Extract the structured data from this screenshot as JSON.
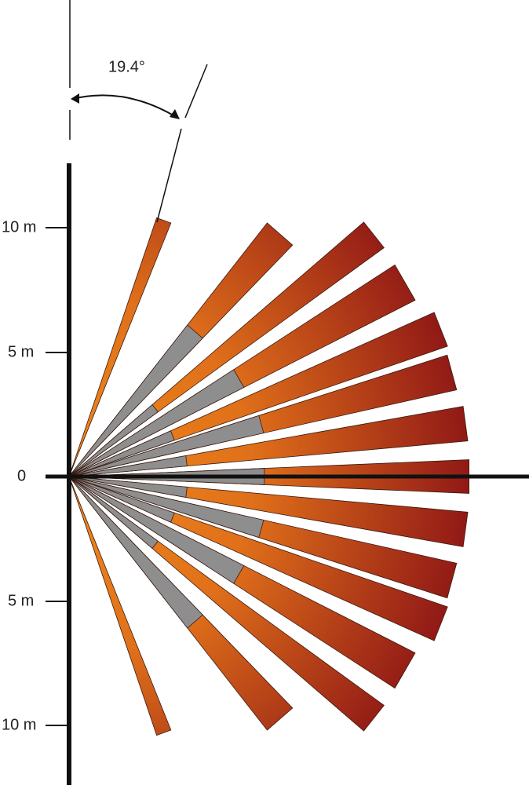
{
  "angle_label": "19.4°",
  "scale_labels": [
    "10 m",
    "5 m",
    "0",
    "5 m",
    "10 m"
  ]
}
